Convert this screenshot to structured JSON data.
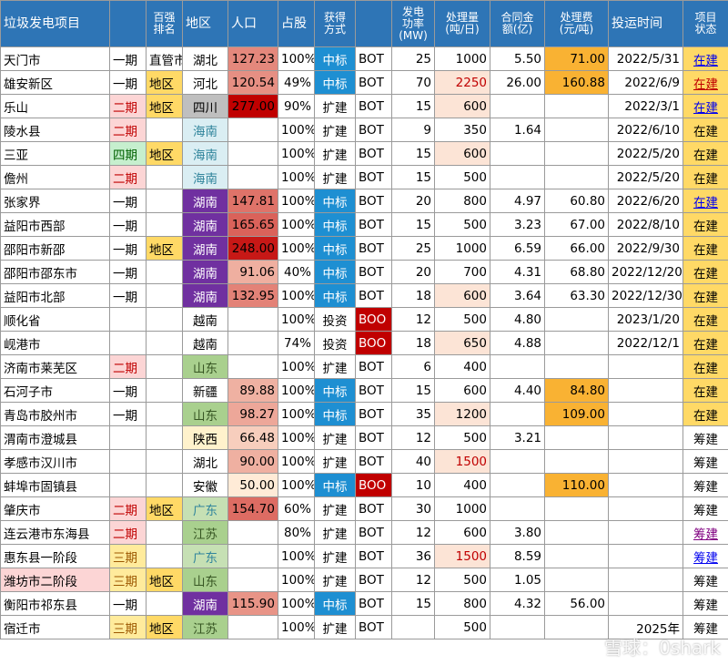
{
  "table": {
    "header": [
      "垃圾发电项目",
      null,
      "百强\n排名",
      "地区",
      "人口",
      "占股",
      "获得\n方式",
      null,
      "发电\n功率\n(MW)",
      "处理量\n(吨/日)",
      "合同金\n额(亿)",
      "处理费\n(元/吨)",
      "投运时间",
      "项目\n状态"
    ],
    "rows": [
      [
        "天门市",
        "一期",
        "直管市",
        "湖北",
        "127.23",
        "100%",
        "中标",
        "BOT",
        "25",
        "1000",
        "5.50",
        "71.00",
        "2022/5/31",
        "在建"
      ],
      [
        "雄安新区",
        "一期",
        "地区",
        "河北",
        "120.54",
        "49%",
        "中标",
        "BOT",
        "70",
        "2250",
        "26.00",
        "160.88",
        "2022/6/9",
        "在建"
      ],
      [
        "乐山",
        "二期",
        "地区",
        "四川",
        "277.00",
        "90%",
        "扩建",
        "BOT",
        "15",
        "600",
        null,
        null,
        "2022/3/1",
        "在建"
      ],
      [
        "陵水县",
        "二期",
        null,
        "海南",
        null,
        "100%",
        "扩建",
        "BOT",
        "9",
        "350",
        "1.64",
        null,
        "2022/6/10",
        "在建"
      ],
      [
        "三亚",
        "四期",
        "地区",
        "海南",
        null,
        "100%",
        "扩建",
        "BOT",
        "15",
        "600",
        null,
        null,
        "2022/5/20",
        "在建"
      ],
      [
        "儋州",
        "二期",
        null,
        "海南",
        null,
        "100%",
        "扩建",
        "BOT",
        "15",
        "500",
        null,
        null,
        "2022/5/20",
        "在建"
      ],
      [
        "张家界",
        "一期",
        null,
        "湖南",
        "147.81",
        "100%",
        "中标",
        "BOT",
        "20",
        "800",
        "4.97",
        "60.80",
        "2022/6/20",
        "在建"
      ],
      [
        "益阳市西部",
        "一期",
        null,
        "湖南",
        "165.65",
        "100%",
        "中标",
        "BOT",
        "15",
        "500",
        "3.23",
        "67.00",
        "2022/8/10",
        "在建"
      ],
      [
        "邵阳市新邵",
        "一期",
        "地区",
        "湖南",
        "248.00",
        "100%",
        "中标",
        "BOT",
        "25",
        "1000",
        "6.59",
        "66.00",
        "2022/9/30",
        "在建"
      ],
      [
        "邵阳市邵东市",
        "一期",
        null,
        "湖南",
        "91.06",
        "40%",
        "中标",
        "BOT",
        "20",
        "700",
        "4.31",
        "68.80",
        "2022/12/20",
        "在建"
      ],
      [
        "益阳市北部",
        "一期",
        null,
        "湖南",
        "132.95",
        "100%",
        "中标",
        "BOT",
        "18",
        "600",
        "3.64",
        "63.30",
        "2022/12/30",
        "在建"
      ],
      [
        "顺化省",
        null,
        null,
        "越南",
        null,
        "100%",
        "投资",
        "BOO",
        "12",
        "500",
        "4.80",
        null,
        "2023/1/20",
        "在建"
      ],
      [
        "岘港市",
        null,
        null,
        "越南",
        null,
        "74%",
        "投资",
        "BOO",
        "18",
        "650",
        "4.88",
        null,
        "2022/12/1",
        "在建"
      ],
      [
        "济南市莱芜区",
        "二期",
        null,
        "山东",
        null,
        "100%",
        "扩建",
        "BOT",
        "6",
        "400",
        null,
        null,
        null,
        "在建"
      ],
      [
        "石河子市",
        "一期",
        null,
        "新疆",
        "89.88",
        "100%",
        "中标",
        "BOT",
        "15",
        "600",
        "4.40",
        "84.80",
        null,
        "在建"
      ],
      [
        "青岛市胶州市",
        "一期",
        null,
        "山东",
        "98.27",
        "100%",
        "中标",
        "BOT",
        "35",
        "1200",
        null,
        "109.00",
        null,
        "在建"
      ],
      [
        "渭南市澄城县",
        null,
        null,
        "陕西",
        "66.48",
        "100%",
        "扩建",
        "BOT",
        "12",
        "500",
        "3.21",
        null,
        null,
        "筹建"
      ],
      [
        "孝感市汉川市",
        null,
        null,
        "湖北",
        "90.00",
        "100%",
        "扩建",
        "BOT",
        "40",
        "1500",
        null,
        null,
        null,
        "筹建"
      ],
      [
        "蚌埠市固镇县",
        null,
        null,
        "安徽",
        "50.00",
        "100%",
        "中标",
        "BOO",
        "10",
        "400",
        null,
        "110.00",
        null,
        "筹建"
      ],
      [
        "肇庆市",
        "二期",
        "地区",
        "广东",
        "154.70",
        "60%",
        "扩建",
        "BOT",
        "30",
        "1000",
        null,
        null,
        null,
        "筹建"
      ],
      [
        "连云港市东海县",
        "二期",
        null,
        "江苏",
        null,
        "80%",
        "扩建",
        "BOT",
        "12",
        "600",
        "3.80",
        null,
        null,
        "筹建"
      ],
      [
        "惠东县一阶段",
        "三期",
        null,
        "广东",
        null,
        "100%",
        "扩建",
        "BOT",
        "36",
        "1500",
        "8.59",
        null,
        null,
        "筹建"
      ],
      [
        "潍坊市二阶段",
        "三期",
        "地区",
        "山东",
        null,
        "100%",
        "扩建",
        "BOT",
        "12",
        "500",
        "1.05",
        null,
        null,
        "筹建"
      ],
      [
        "衡阳市祁东县",
        "一期",
        null,
        "湖南",
        "115.90",
        "100%",
        "中标",
        "BOT",
        "15",
        "800",
        "4.32",
        "56.00",
        null,
        "筹建"
      ],
      [
        "宿迁市",
        "三期",
        "地区",
        "江苏",
        null,
        "100%",
        "扩建",
        "BOT",
        null,
        "500",
        null,
        null,
        "2025年",
        "筹建"
      ]
    ]
  },
  "watermark": "雪球：0shark"
}
